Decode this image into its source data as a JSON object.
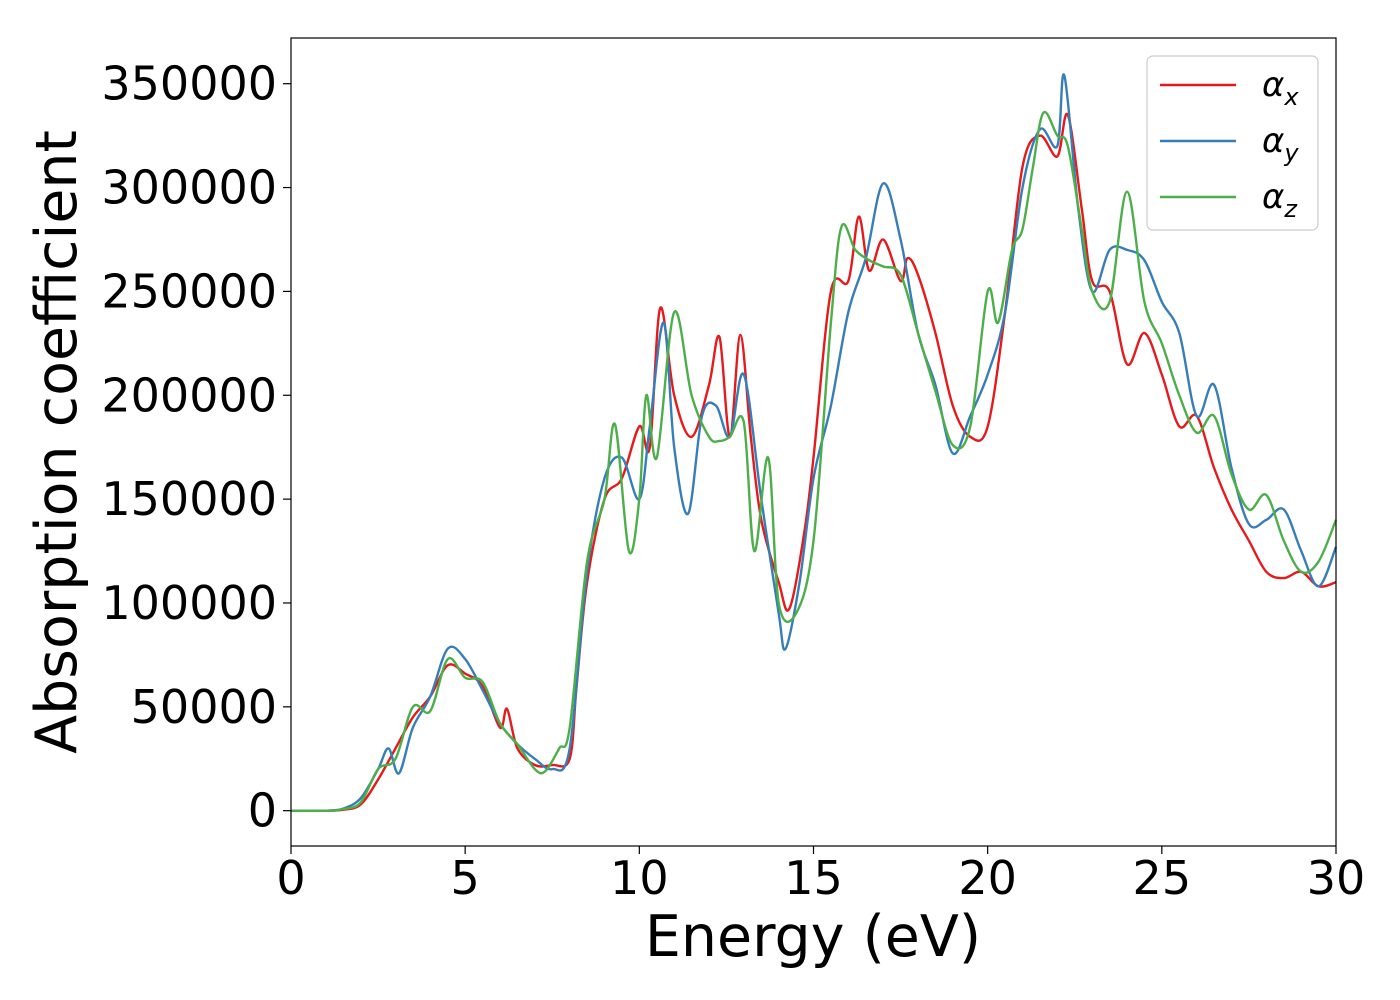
{
  "chart_data": {
    "type": "line",
    "title": "",
    "xlabel": "Energy (eV)",
    "ylabel": "Absorption coefficient",
    "xlim": [
      0,
      30
    ],
    "ylim": [
      -17000,
      372000
    ],
    "xticks": [
      0,
      5,
      10,
      15,
      20,
      25,
      30
    ],
    "yticks": [
      0,
      50000,
      100000,
      150000,
      200000,
      250000,
      300000,
      350000
    ],
    "grid": false,
    "legend_position": "top-right",
    "series": [
      {
        "name": "α_x",
        "label_base": "α",
        "label_sub": "x",
        "color": "#e41a1c",
        "x": [
          0,
          1,
          1.5,
          2,
          2.5,
          3,
          3.5,
          4,
          4.5,
          5,
          5.5,
          6,
          6.2,
          6.5,
          7,
          7.5,
          8,
          8.2,
          8.5,
          9,
          9.5,
          10,
          10.3,
          10.6,
          11,
          11.5,
          12,
          12.3,
          12.6,
          12.9,
          13.2,
          13.5,
          14,
          14.3,
          14.7,
          15,
          15.5,
          16,
          16.3,
          16.6,
          17,
          17.5,
          17.7,
          18,
          18.5,
          19,
          19.5,
          20,
          20.5,
          21,
          21.5,
          22,
          22.3,
          22.7,
          23,
          23.5,
          24,
          24.5,
          25,
          25.5,
          26,
          26.5,
          27,
          27.5,
          28,
          28.5,
          29,
          29.5,
          30
        ],
        "values": [
          0,
          0,
          500,
          3000,
          15000,
          30000,
          45000,
          55000,
          70000,
          66000,
          60000,
          40000,
          49000,
          30000,
          22000,
          22000,
          25000,
          60000,
          110000,
          150000,
          160000,
          185000,
          175000,
          242000,
          200000,
          180000,
          205000,
          228000,
          180000,
          229000,
          180000,
          140000,
          110000,
          97000,
          130000,
          170000,
          250000,
          255000,
          286000,
          260000,
          275000,
          255000,
          266000,
          258000,
          230000,
          195000,
          180000,
          185000,
          240000,
          310000,
          325000,
          315000,
          335000,
          290000,
          255000,
          250000,
          215000,
          230000,
          210000,
          185000,
          190000,
          165000,
          145000,
          130000,
          115000,
          112000,
          115000,
          108000,
          110000
        ]
      },
      {
        "name": "α_y",
        "label_base": "α",
        "label_sub": "y",
        "color": "#377eb8",
        "x": [
          0,
          1,
          1.5,
          2,
          2.5,
          2.8,
          3.1,
          3.5,
          4,
          4.5,
          5,
          5.5,
          6,
          6.5,
          7,
          7.5,
          8,
          8.5,
          9,
          9.5,
          10,
          10.3,
          10.7,
          11,
          11.4,
          11.8,
          12.2,
          12.6,
          13,
          13.5,
          14,
          14.2,
          14.6,
          15,
          15.5,
          16,
          16.5,
          17,
          17.5,
          18,
          18.5,
          19,
          19.5,
          20,
          20.5,
          21,
          21.5,
          22,
          22.2,
          22.6,
          23,
          23.5,
          24,
          24.5,
          25,
          25.5,
          26,
          26.5,
          27,
          27.5,
          28,
          28.5,
          29,
          29.5,
          30
        ],
        "values": [
          0,
          0,
          1000,
          6000,
          20000,
          30000,
          18000,
          40000,
          55000,
          78000,
          73000,
          58000,
          42000,
          32000,
          25000,
          20000,
          30000,
          115000,
          160000,
          170000,
          150000,
          185000,
          235000,
          175000,
          143000,
          190000,
          195000,
          180000,
          210000,
          150000,
          95000,
          78000,
          110000,
          160000,
          195000,
          240000,
          266000,
          302000,
          275000,
          230000,
          205000,
          172000,
          190000,
          210000,
          240000,
          300000,
          328000,
          320000,
          354000,
          290000,
          250000,
          270000,
          270000,
          265000,
          245000,
          230000,
          190000,
          205000,
          165000,
          138000,
          140000,
          145000,
          125000,
          108000,
          127000
        ]
      },
      {
        "name": "α_z",
        "label_base": "α",
        "label_sub": "z",
        "color": "#4daf4a",
        "x": [
          0,
          1,
          1.5,
          2,
          2.5,
          3,
          3.5,
          4,
          4.5,
          5,
          5.5,
          6,
          6.5,
          7,
          7.3,
          7.7,
          8,
          8.5,
          9,
          9.3,
          9.7,
          10,
          10.2,
          10.5,
          11,
          11.5,
          12,
          12.3,
          12.6,
          13,
          13.3,
          13.7,
          14,
          14.5,
          15,
          15.5,
          15.8,
          16.2,
          16.6,
          17,
          17.5,
          18,
          18.5,
          19,
          19.5,
          20,
          20.3,
          20.7,
          21,
          21.3,
          21.6,
          22,
          22.3,
          22.7,
          23,
          23.5,
          24,
          24.5,
          25,
          25.5,
          26,
          26.5,
          27,
          27.5,
          28,
          28.5,
          29,
          29.5,
          30
        ],
        "values": [
          0,
          0,
          800,
          4000,
          20000,
          25000,
          50000,
          48000,
          73000,
          64000,
          62000,
          42000,
          32000,
          20000,
          19000,
          30000,
          40000,
          120000,
          150000,
          186000,
          125000,
          150000,
          200000,
          170000,
          240000,
          200000,
          180000,
          178000,
          180000,
          187000,
          125000,
          170000,
          100000,
          95000,
          130000,
          235000,
          281000,
          270000,
          265000,
          262000,
          258000,
          230000,
          202000,
          176000,
          185000,
          250000,
          235000,
          270000,
          280000,
          310000,
          336000,
          325000,
          320000,
          280000,
          250000,
          245000,
          298000,
          245000,
          225000,
          200000,
          182000,
          190000,
          162000,
          145000,
          152000,
          130000,
          115000,
          120000,
          140000
        ]
      }
    ]
  }
}
